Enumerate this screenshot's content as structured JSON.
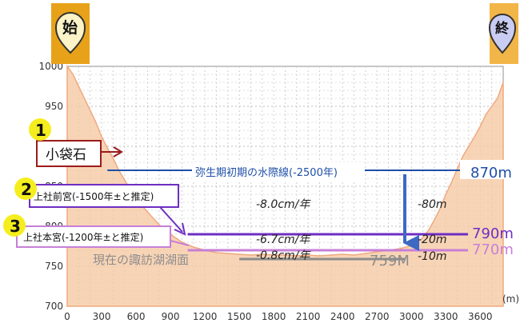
{
  "markers": {
    "start": {
      "label": "始",
      "color": "#e8a21a"
    },
    "end": {
      "label": "終",
      "color": "#7b82c9"
    }
  },
  "chart_data": {
    "type": "area",
    "xlim": [
      0,
      3800
    ],
    "ylim": [
      700,
      1000
    ],
    "x_ticks": [
      0,
      300,
      600,
      900,
      1200,
      1500,
      1800,
      2100,
      2400,
      2700,
      3000,
      3300,
      3600
    ],
    "y_ticks": [
      700,
      750,
      800,
      850,
      900,
      950,
      1000
    ],
    "x_unit": "(m)",
    "grid": true,
    "fill_color": "#f6c9a4",
    "line_color": "#efa97e",
    "series": [
      {
        "values_x": [
          0,
          50,
          100,
          150,
          200,
          250,
          300,
          350,
          400,
          450,
          500,
          550,
          600,
          650,
          700,
          750,
          800,
          850,
          900,
          950,
          1000,
          1100,
          1200,
          1300,
          1400,
          1500,
          1600,
          1700,
          1800,
          1900,
          2000,
          2100,
          2200,
          2300,
          2400,
          2500,
          2600,
          2700,
          2800,
          2900,
          3000,
          3050,
          3100,
          3150,
          3200,
          3250,
          3300,
          3350,
          3400,
          3450,
          3500,
          3550,
          3600,
          3650,
          3700,
          3750,
          3800
        ],
        "values_y": [
          1000,
          990,
          975,
          960,
          945,
          930,
          912,
          898,
          885,
          870,
          858,
          846,
          836,
          826,
          818,
          810,
          802,
          796,
          790,
          785,
          780,
          774,
          770,
          767,
          766,
          765,
          764,
          765,
          764,
          764,
          763,
          764,
          763,
          764,
          765,
          764,
          766,
          768,
          770,
          772,
          776,
          780,
          786,
          795,
          808,
          822,
          840,
          855,
          872,
          888,
          900,
          912,
          925,
          940,
          950,
          960,
          980
        ]
      }
    ],
    "lines": [
      {
        "label": "弥生期初期の水際線(-2500年)",
        "y": 870,
        "x_start": 350,
        "x_end": 3800,
        "color": "#1f4fa8",
        "value_label": "870m"
      },
      {
        "label": "上社前宮(-1500年±と推定)",
        "y": 790,
        "x_start": 1050,
        "x_end": 3800,
        "color": "#6f2ec2",
        "value_label": "790m"
      },
      {
        "label": "上社本宮(-1200年±と推定)",
        "y": 770,
        "x_start": 1050,
        "x_end": 3800,
        "color": "#c77fd7",
        "value_label": "770m"
      },
      {
        "label": "現在の諏訪湖湖面",
        "y": 759,
        "x_start": 1500,
        "x_end": 2950,
        "color": "#8c8c8c",
        "value_label": "759M"
      }
    ],
    "callouts": [
      {
        "num": "",
        "label": "小袋石",
        "color": "#9b1b1b"
      },
      {
        "num": "2",
        "label": "上社前宮(-1500年±と推定)",
        "color": "#6f2ec2"
      },
      {
        "num": "3",
        "label": "上社本宮(-1200年±と推定)",
        "color": "#c77fd7"
      }
    ],
    "circles": [
      "1",
      "2",
      "3"
    ],
    "annotations": {
      "rate_1": "-8.0cm/年",
      "rate_2": "-6.7cm/年",
      "rate_3": "-0.8cm/年",
      "drop_1": "-80m",
      "drop_2": "-20m",
      "drop_3": "-10m"
    }
  }
}
